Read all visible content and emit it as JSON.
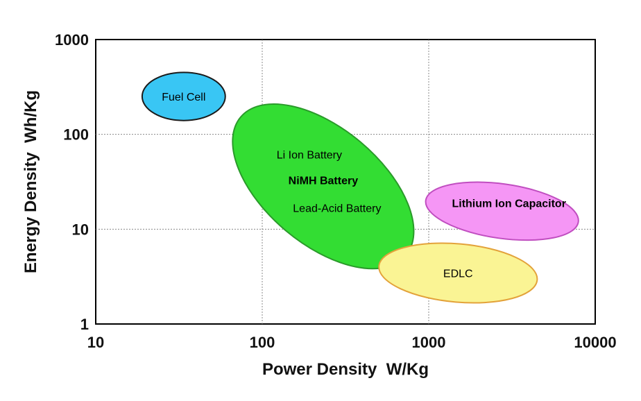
{
  "chart_data": {
    "type": "scatter",
    "xlabel": "Power Density  W/Kg",
    "ylabel": "Energy Density  Wh/Kg",
    "x_scale": "log",
    "y_scale": "log",
    "xlim": [
      10,
      10000
    ],
    "ylim": [
      1,
      1000
    ],
    "x_ticks": [
      "10",
      "100",
      "1000",
      "10000"
    ],
    "y_ticks": [
      "1",
      "10",
      "100",
      "1000"
    ],
    "grid": true,
    "regions": [
      {
        "name": "Fuel Cell",
        "power_range": [
          19,
          60
        ],
        "energy_range": [
          140,
          450
        ],
        "color": "#39c6f4",
        "label_color": "#000000",
        "label_bold": false
      },
      {
        "name": "Li Ion Battery",
        "power_range": [
          60,
          900
        ],
        "energy_range": [
          4,
          200
        ],
        "color": "#33dd33",
        "label_color": "#000000",
        "label_bold": false
      },
      {
        "name": "Lithium Ion Capacitor",
        "power_range": [
          950,
          8000
        ],
        "energy_range": [
          8,
          30
        ],
        "color": "#f596f5",
        "label_color": "#e8001c",
        "label_bold": true
      },
      {
        "name": "EDLC",
        "power_range": [
          500,
          4500
        ],
        "energy_range": [
          1.7,
          7
        ],
        "color": "#faf494",
        "label_color": "#000000",
        "label_bold": false
      }
    ],
    "extra_labels": [
      {
        "text": "NiMH Battery",
        "region": "Li Ion Battery",
        "bold": true
      },
      {
        "text": "Lead-Acid Battery",
        "region": "Li Ion Battery",
        "bold": false
      }
    ],
    "colors": {
      "edge_fuel": "#1a1a1a",
      "edge_green": "#2a9a2a",
      "edge_pink": "#c04ec0",
      "edge_yellow": "#e3a23a",
      "grid": "#888888",
      "axis": "#000000"
    }
  }
}
